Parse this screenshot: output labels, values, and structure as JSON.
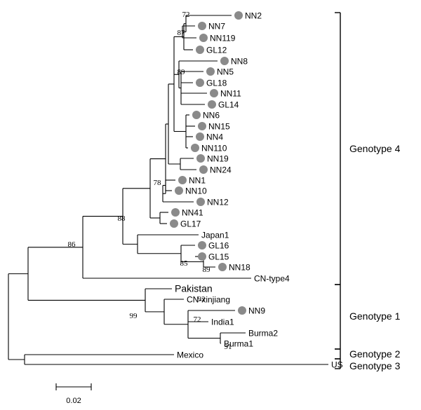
{
  "taxa": [
    {
      "id": "NN2",
      "label": "NN2",
      "marked": true
    },
    {
      "id": "NN7",
      "label": "NN7",
      "marked": true
    },
    {
      "id": "NN119",
      "label": "NN119",
      "marked": true
    },
    {
      "id": "GL12",
      "label": "GL12",
      "marked": true
    },
    {
      "id": "NN8",
      "label": "NN8",
      "marked": true
    },
    {
      "id": "NN5",
      "label": "NN5",
      "marked": true
    },
    {
      "id": "GL18",
      "label": "GL18",
      "marked": true
    },
    {
      "id": "NN11",
      "label": "NN11",
      "marked": true
    },
    {
      "id": "GL14",
      "label": "GL14",
      "marked": true
    },
    {
      "id": "NN6",
      "label": "NN6",
      "marked": true
    },
    {
      "id": "NN15",
      "label": "NN15",
      "marked": true
    },
    {
      "id": "NN4",
      "label": "NN4",
      "marked": true
    },
    {
      "id": "NN110",
      "label": "NN110",
      "marked": true
    },
    {
      "id": "NN19",
      "label": "NN19",
      "marked": true
    },
    {
      "id": "NN24",
      "label": "NN24",
      "marked": true
    },
    {
      "id": "NN1",
      "label": "NN1",
      "marked": true
    },
    {
      "id": "NN10",
      "label": "NN10",
      "marked": true
    },
    {
      "id": "NN12",
      "label": "NN12",
      "marked": true
    },
    {
      "id": "NN41",
      "label": "NN41",
      "marked": true
    },
    {
      "id": "GL17",
      "label": "GL17",
      "marked": true
    },
    {
      "id": "Japan1",
      "label": "Japan1",
      "marked": false
    },
    {
      "id": "GL16",
      "label": "GL16",
      "marked": true
    },
    {
      "id": "GL15",
      "label": "GL15",
      "marked": true
    },
    {
      "id": "NN18",
      "label": "NN18",
      "marked": true
    },
    {
      "id": "CN-type4",
      "label": "CN-type4",
      "marked": false
    },
    {
      "id": "Pakistan",
      "label": "Pakistan",
      "marked": false,
      "large": true
    },
    {
      "id": "CN-xinjiang",
      "label": "CN-xinjiang",
      "marked": false
    },
    {
      "id": "NN9",
      "label": "NN9",
      "marked": true
    },
    {
      "id": "India1",
      "label": "India1",
      "marked": false
    },
    {
      "id": "Burma2",
      "label": "Burma2",
      "marked": false
    },
    {
      "id": "Burma1",
      "label": "Burma1",
      "marked": false
    },
    {
      "id": "Mexico",
      "label": "Mexico",
      "marked": false
    },
    {
      "id": "US",
      "label": "US",
      "marked": false
    }
  ],
  "bootstrap_values": [
    "72",
    "87",
    "89",
    "78",
    "88",
    "86",
    "85",
    "89",
    "92",
    "99",
    "72",
    "91"
  ],
  "genotype_groups": [
    {
      "label": "Genotype 4",
      "members": [
        "NN2",
        "CN-type4"
      ]
    },
    {
      "label": "Genotype 1",
      "members": [
        "Pakistan",
        "Burma1"
      ]
    },
    {
      "label": "Genotype 2",
      "members": [
        "Mexico"
      ]
    },
    {
      "label": "Genotype 3",
      "members": [
        "US"
      ]
    }
  ],
  "scale_bar": {
    "label": "0.02",
    "length": 0.02
  },
  "colors": {
    "marker": "#8a8a8a",
    "line": "#000000"
  }
}
